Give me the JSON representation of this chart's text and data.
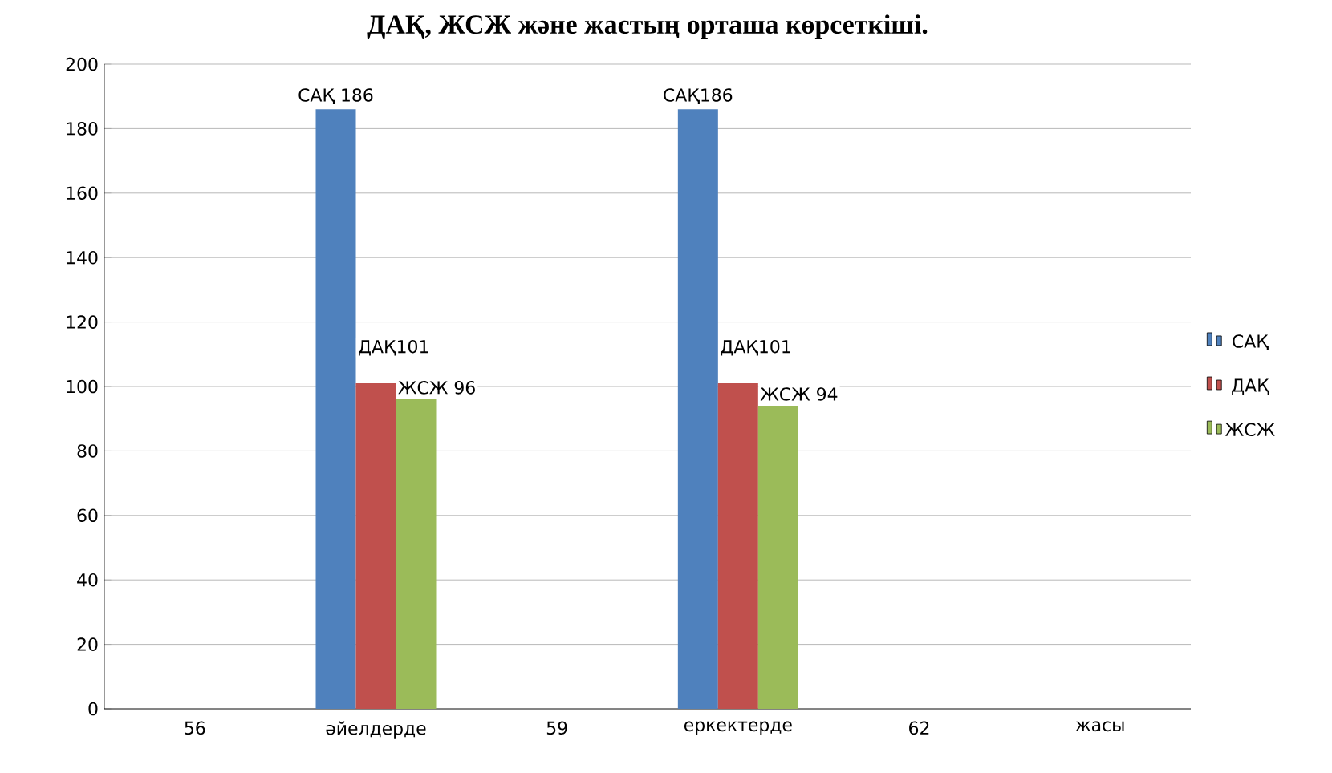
{
  "chart_data": {
    "type": "bar",
    "title": "ДАҚ, ЖСЖ және жастың орташа көрсеткіші.",
    "categories": [
      "56",
      "әйелдерде",
      "59",
      "еркектерде",
      "62",
      "жасы"
    ],
    "series": [
      {
        "name": "САҚ",
        "color": "#4f81bd",
        "values": [
          null,
          186,
          null,
          186,
          null,
          null
        ],
        "value_labels": [
          null,
          "САҚ 186",
          null,
          "САҚ186",
          null,
          null
        ]
      },
      {
        "name": "ДАҚ",
        "color": "#c0504d",
        "values": [
          null,
          101,
          null,
          101,
          null,
          null
        ],
        "value_labels": [
          null,
          "ДАҚ101",
          null,
          "ДАҚ101",
          null,
          null
        ]
      },
      {
        "name": "ЖСЖ",
        "color": "#9bbb59",
        "values": [
          null,
          96,
          null,
          94,
          null,
          null
        ],
        "value_labels": [
          null,
          "ЖСЖ 96",
          null,
          "ЖСЖ 94",
          null,
          null
        ]
      }
    ],
    "ylim": [
      0,
      200
    ],
    "yticks": [
      0,
      20,
      40,
      60,
      80,
      100,
      120,
      140,
      160,
      180,
      200
    ],
    "grid": "y",
    "legend": "right"
  }
}
